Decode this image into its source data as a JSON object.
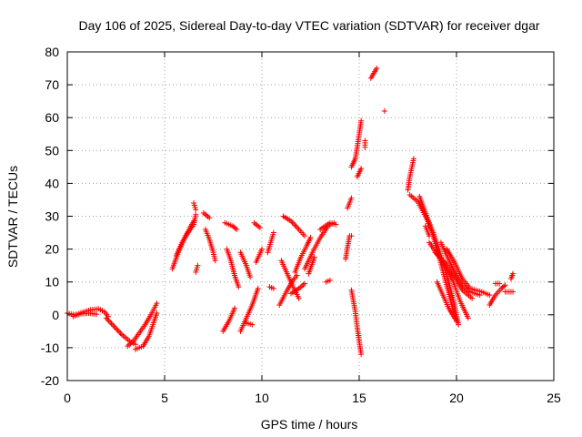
{
  "chart_data": {
    "type": "scatter",
    "title": "Day 106 of 2025, Sidereal Day-to-day VTEC variation (SDTVAR) for receiver dgar",
    "xlabel": "GPS time / hours",
    "ylabel": "SDTVAR / TECUs",
    "xlim": [
      0,
      25
    ],
    "ylim": [
      -20,
      80
    ],
    "xticks": [
      0,
      5,
      10,
      15,
      20,
      25
    ],
    "yticks": [
      -20,
      -10,
      0,
      10,
      20,
      30,
      40,
      50,
      60,
      70,
      80
    ],
    "grid": true,
    "marker": "+",
    "color": "#ff0000",
    "tracks": [
      [
        [
          0.0,
          0.5
        ],
        [
          0.4,
          0.0
        ],
        [
          0.8,
          0.8
        ],
        [
          1.2,
          1.5
        ],
        [
          1.6,
          1.8
        ],
        [
          1.9,
          1.0
        ],
        [
          2.1,
          -0.5
        ]
      ],
      [
        [
          0.3,
          -0.5
        ],
        [
          0.7,
          0.3
        ],
        [
          1.1,
          0.5
        ],
        [
          1.5,
          0.2
        ]
      ],
      [
        [
          2.0,
          -1.0
        ],
        [
          2.4,
          -3.5
        ],
        [
          2.8,
          -6.0
        ],
        [
          3.2,
          -8.0
        ],
        [
          3.5,
          -9.0
        ]
      ],
      [
        [
          3.1,
          -9.5
        ],
        [
          3.4,
          -8.0
        ],
        [
          3.7,
          -5.5
        ],
        [
          4.0,
          -3.0
        ],
        [
          4.3,
          0.0
        ],
        [
          4.6,
          3.5
        ]
      ],
      [
        [
          3.5,
          -10.5
        ],
        [
          3.9,
          -9.5
        ],
        [
          4.2,
          -6.5
        ],
        [
          4.4,
          -3.0
        ],
        [
          4.6,
          0.5
        ]
      ],
      [
        [
          5.4,
          14.0
        ],
        [
          5.7,
          19.0
        ],
        [
          6.0,
          23.0
        ],
        [
          6.3,
          26.5
        ],
        [
          6.5,
          28.5
        ]
      ],
      [
        [
          5.6,
          18.0
        ],
        [
          5.9,
          22.0
        ],
        [
          6.2,
          25.0
        ],
        [
          6.5,
          27.5
        ],
        [
          6.6,
          30.5
        ]
      ],
      [
        [
          6.6,
          13.0
        ],
        [
          6.7,
          15.0
        ]
      ],
      [
        [
          6.5,
          34.0
        ],
        [
          6.6,
          32.0
        ]
      ],
      [
        [
          7.0,
          31.0
        ],
        [
          7.3,
          29.5
        ]
      ],
      [
        [
          7.1,
          26.0
        ],
        [
          7.3,
          23.0
        ],
        [
          7.5,
          19.0
        ],
        [
          7.6,
          16.5
        ]
      ],
      [
        [
          8.1,
          28.0
        ],
        [
          8.5,
          27.0
        ],
        [
          8.7,
          26.0
        ]
      ],
      [
        [
          8.2,
          20.0
        ],
        [
          8.4,
          16.5
        ],
        [
          8.6,
          12.0
        ],
        [
          8.8,
          8.5
        ]
      ],
      [
        [
          8.0,
          -5.0
        ],
        [
          8.3,
          -2.0
        ],
        [
          8.6,
          2.0
        ]
      ],
      [
        [
          8.9,
          -5.0
        ],
        [
          9.2,
          -1.0
        ],
        [
          9.5,
          3.0
        ],
        [
          9.8,
          8.0
        ]
      ],
      [
        [
          8.9,
          19.0
        ],
        [
          9.2,
          15.0
        ],
        [
          9.4,
          11.5
        ]
      ],
      [
        [
          9.2,
          -2.5
        ],
        [
          9.5,
          -3.0
        ]
      ],
      [
        [
          9.6,
          28.0
        ],
        [
          9.9,
          26.5
        ]
      ],
      [
        [
          9.7,
          16.0
        ],
        [
          10.0,
          20.0
        ]
      ],
      [
        [
          10.3,
          19.0
        ],
        [
          10.6,
          25.0
        ]
      ],
      [
        [
          10.4,
          8.5
        ],
        [
          10.6,
          8.0
        ]
      ],
      [
        [
          10.9,
          3.0
        ],
        [
          11.3,
          7.5
        ],
        [
          11.6,
          10.5
        ],
        [
          11.8,
          12.0
        ]
      ],
      [
        [
          11.1,
          30.0
        ],
        [
          11.5,
          28.5
        ],
        [
          11.9,
          26.0
        ],
        [
          12.2,
          24.0
        ]
      ],
      [
        [
          11.0,
          16.5
        ],
        [
          11.3,
          12.5
        ],
        [
          11.6,
          8.5
        ],
        [
          11.9,
          5.0
        ]
      ],
      [
        [
          11.5,
          6.5
        ],
        [
          11.9,
          8.0
        ],
        [
          12.2,
          9.5
        ]
      ],
      [
        [
          11.7,
          13.0
        ],
        [
          12.0,
          17.5
        ],
        [
          12.3,
          21.0
        ],
        [
          12.5,
          23.5
        ]
      ],
      [
        [
          12.2,
          14.0
        ],
        [
          12.6,
          19.0
        ],
        [
          13.0,
          23.5
        ],
        [
          13.4,
          27.0
        ],
        [
          13.7,
          28.0
        ]
      ],
      [
        [
          12.4,
          12.5
        ],
        [
          12.7,
          17.5
        ]
      ],
      [
        [
          13.0,
          26.0
        ],
        [
          13.5,
          28.0
        ],
        [
          13.8,
          27.5
        ]
      ],
      [
        [
          13.3,
          10.0
        ],
        [
          13.5,
          10.5
        ]
      ],
      [
        [
          14.3,
          17.0
        ],
        [
          14.5,
          24.0
        ],
        [
          14.6,
          24.0
        ]
      ],
      [
        [
          14.4,
          32.5
        ],
        [
          14.6,
          35.5
        ]
      ],
      [
        [
          14.6,
          7.5
        ],
        [
          14.8,
          1.0
        ],
        [
          14.9,
          -4.0
        ],
        [
          15.0,
          -8.0
        ],
        [
          15.1,
          -12.0
        ]
      ],
      [
        [
          14.6,
          45.0
        ],
        [
          14.8,
          47.5
        ],
        [
          14.9,
          51.0
        ],
        [
          15.0,
          55.0
        ],
        [
          15.1,
          59.0
        ]
      ],
      [
        [
          14.9,
          42.0
        ],
        [
          15.1,
          44.5
        ]
      ],
      [
        [
          15.3,
          51.0
        ],
        [
          15.3,
          53.0
        ]
      ],
      [
        [
          15.6,
          72.0
        ],
        [
          15.9,
          75.0
        ]
      ],
      [
        [
          16.3,
          62.0
        ]
      ],
      [
        [
          17.5,
          38.0
        ],
        [
          17.6,
          42.0
        ],
        [
          17.8,
          47.5
        ]
      ],
      [
        [
          17.6,
          36.5
        ],
        [
          18.0,
          34.5
        ],
        [
          18.4,
          30.0
        ],
        [
          18.8,
          25.0
        ],
        [
          19.2,
          18.0
        ],
        [
          19.6,
          10.0
        ],
        [
          19.9,
          3.0
        ],
        [
          20.1,
          -3.0
        ]
      ],
      [
        [
          18.1,
          36.0
        ],
        [
          18.6,
          28.0
        ],
        [
          19.0,
          20.0
        ],
        [
          19.4,
          11.0
        ],
        [
          19.8,
          2.0
        ],
        [
          20.0,
          -2.0
        ]
      ],
      [
        [
          18.4,
          27.0
        ],
        [
          18.6,
          24.0
        ]
      ],
      [
        [
          18.6,
          22.0
        ],
        [
          19.0,
          18.5
        ],
        [
          19.4,
          15.0
        ],
        [
          19.8,
          10.5
        ],
        [
          20.2,
          4.0
        ],
        [
          20.6,
          -1.0
        ]
      ],
      [
        [
          18.9,
          19.0
        ],
        [
          19.4,
          16.0
        ],
        [
          19.8,
          12.5
        ],
        [
          20.3,
          7.5
        ],
        [
          20.8,
          5.0
        ]
      ],
      [
        [
          19.2,
          22.0
        ],
        [
          19.5,
          18.0
        ],
        [
          19.9,
          13.0
        ],
        [
          20.3,
          9.0
        ],
        [
          20.7,
          7.0
        ],
        [
          21.2,
          6.0
        ]
      ],
      [
        [
          19.5,
          20.0
        ],
        [
          19.9,
          16.0
        ],
        [
          20.3,
          11.0
        ],
        [
          20.7,
          8.0
        ],
        [
          21.3,
          7.0
        ],
        [
          21.7,
          6.0
        ]
      ],
      [
        [
          19.0,
          10.0
        ],
        [
          19.3,
          6.0
        ],
        [
          19.6,
          2.0
        ],
        [
          19.9,
          -1.0
        ]
      ],
      [
        [
          21.7,
          3.0
        ],
        [
          22.0,
          6.0
        ],
        [
          22.3,
          8.0
        ],
        [
          22.5,
          9.0
        ]
      ],
      [
        [
          22.0,
          9.5
        ],
        [
          22.2,
          9.5
        ]
      ],
      [
        [
          22.8,
          11.0
        ],
        [
          22.9,
          12.5
        ]
      ],
      [
        [
          22.5,
          7.0
        ],
        [
          22.9,
          7.0
        ]
      ]
    ]
  }
}
